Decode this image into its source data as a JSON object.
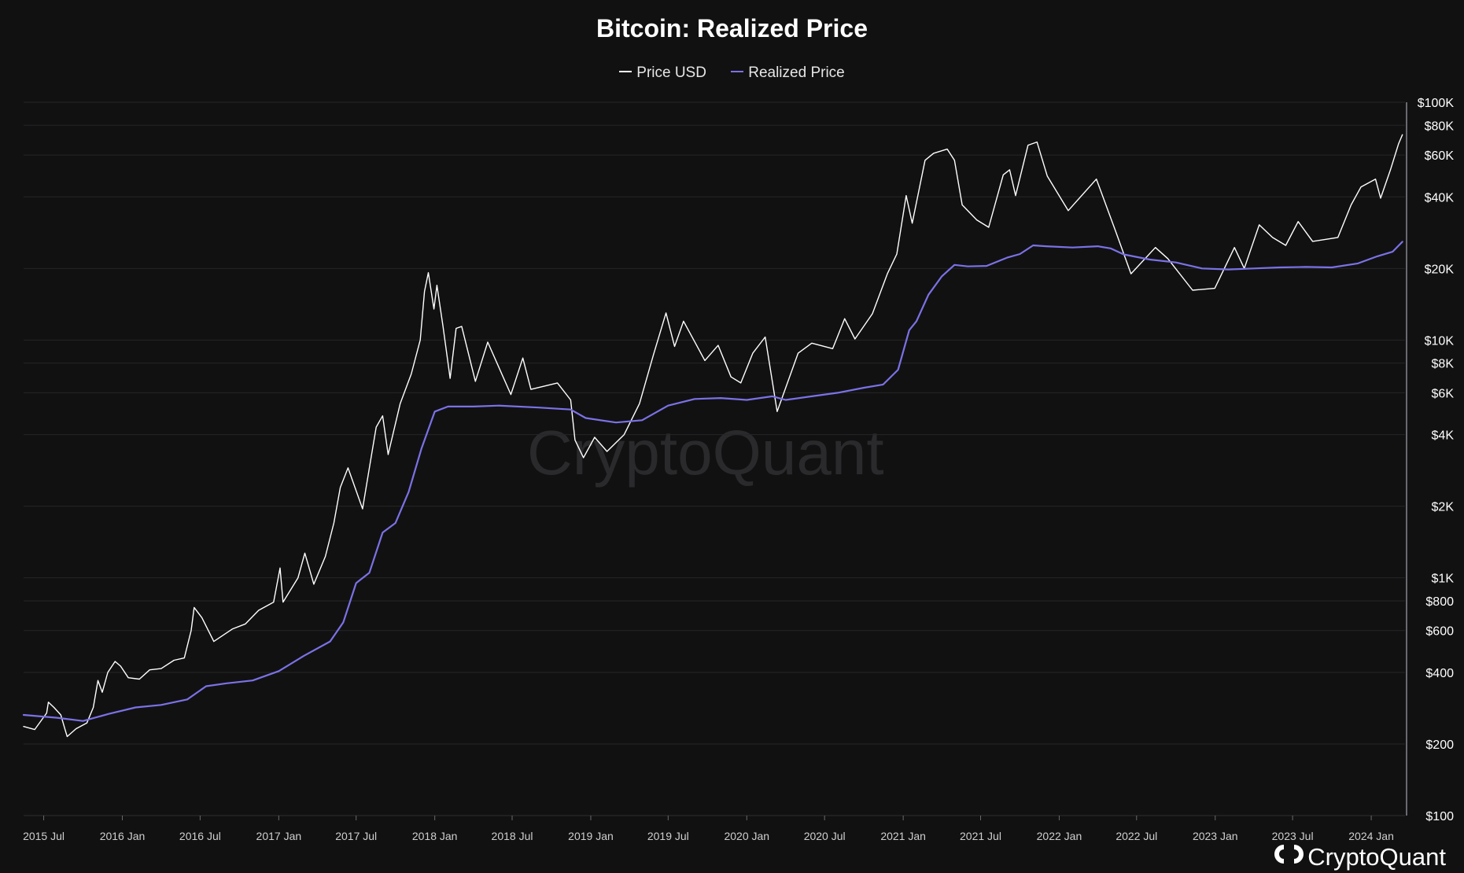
{
  "chart_data": {
    "type": "line",
    "title": "Bitcoin: Realized Price",
    "xlabel": "",
    "ylabel": "",
    "y_scale": "log",
    "ylim": [
      100,
      100000
    ],
    "xlim": [
      "2015-05-15",
      "2024-03-20"
    ],
    "grid": "horizontal",
    "legend_position": "top-center",
    "x_ticks": [
      "2015 Jul",
      "2016 Jan",
      "2016 Jul",
      "2017 Jan",
      "2017 Jul",
      "2018 Jan",
      "2018 Jul",
      "2019 Jan",
      "2019 Jul",
      "2020 Jan",
      "2020 Jul",
      "2021 Jan",
      "2021 Jul",
      "2022 Jan",
      "2022 Jul",
      "2023 Jan",
      "2023 Jul",
      "2024 Jan"
    ],
    "y_ticks": [
      "$100",
      "$200",
      "$400",
      "$600",
      "$800",
      "$1K",
      "$2K",
      "$4K",
      "$6K",
      "$8K",
      "$10K",
      "$20K",
      "$40K",
      "$60K",
      "$80K",
      "$100K"
    ],
    "y_tick_values": [
      100,
      200,
      400,
      600,
      800,
      1000,
      2000,
      4000,
      6000,
      8000,
      10000,
      20000,
      40000,
      60000,
      80000,
      100000
    ],
    "watermark": "CryptoQuant",
    "brand": "CryptoQuant",
    "series": [
      {
        "name": "Price USD",
        "color": "#ffffff",
        "points": [
          [
            "2015-05-15",
            237
          ],
          [
            "2015-06-10",
            230
          ],
          [
            "2015-07-08",
            270
          ],
          [
            "2015-07-12",
            300
          ],
          [
            "2015-07-25",
            285
          ],
          [
            "2015-08-10",
            265
          ],
          [
            "2015-08-20",
            230
          ],
          [
            "2015-08-25",
            215
          ],
          [
            "2015-09-15",
            232
          ],
          [
            "2015-10-10",
            245
          ],
          [
            "2015-10-25",
            285
          ],
          [
            "2015-11-05",
            370
          ],
          [
            "2015-11-15",
            330
          ],
          [
            "2015-11-28",
            400
          ],
          [
            "2015-12-15",
            445
          ],
          [
            "2015-12-28",
            425
          ],
          [
            "2016-01-15",
            380
          ],
          [
            "2016-02-10",
            375
          ],
          [
            "2016-03-05",
            410
          ],
          [
            "2016-04-01",
            415
          ],
          [
            "2016-05-01",
            450
          ],
          [
            "2016-05-25",
            460
          ],
          [
            "2016-06-10",
            600
          ],
          [
            "2016-06-17",
            750
          ],
          [
            "2016-07-05",
            680
          ],
          [
            "2016-08-02",
            540
          ],
          [
            "2016-09-15",
            610
          ],
          [
            "2016-10-15",
            640
          ],
          [
            "2016-11-15",
            730
          ],
          [
            "2016-12-20",
            790
          ],
          [
            "2017-01-04",
            1100
          ],
          [
            "2017-01-11",
            790
          ],
          [
            "2017-02-15",
            1000
          ],
          [
            "2017-03-03",
            1270
          ],
          [
            "2017-03-24",
            940
          ],
          [
            "2017-04-20",
            1230
          ],
          [
            "2017-05-10",
            1700
          ],
          [
            "2017-05-25",
            2400
          ],
          [
            "2017-06-12",
            2900
          ],
          [
            "2017-07-16",
            1950
          ],
          [
            "2017-08-05",
            3200
          ],
          [
            "2017-08-17",
            4300
          ],
          [
            "2017-09-01",
            4800
          ],
          [
            "2017-09-14",
            3300
          ],
          [
            "2017-10-12",
            5400
          ],
          [
            "2017-11-07",
            7200
          ],
          [
            "2017-11-28",
            10000
          ],
          [
            "2017-12-08",
            16000
          ],
          [
            "2017-12-17",
            19200
          ],
          [
            "2017-12-30",
            13500
          ],
          [
            "2018-01-06",
            17000
          ],
          [
            "2018-01-20",
            11500
          ],
          [
            "2018-02-06",
            6900
          ],
          [
            "2018-02-20",
            11200
          ],
          [
            "2018-03-05",
            11400
          ],
          [
            "2018-04-06",
            6700
          ],
          [
            "2018-05-05",
            9800
          ],
          [
            "2018-06-28",
            5900
          ],
          [
            "2018-07-26",
            8400
          ],
          [
            "2018-08-14",
            6200
          ],
          [
            "2018-10-15",
            6600
          ],
          [
            "2018-11-15",
            5600
          ],
          [
            "2018-11-25",
            3800
          ],
          [
            "2018-12-15",
            3200
          ],
          [
            "2019-01-10",
            3900
          ],
          [
            "2019-02-08",
            3400
          ],
          [
            "2019-03-20",
            4000
          ],
          [
            "2019-04-25",
            5400
          ],
          [
            "2019-05-28",
            8700
          ],
          [
            "2019-06-26",
            13000
          ],
          [
            "2019-07-16",
            9400
          ],
          [
            "2019-08-06",
            12000
          ],
          [
            "2019-09-25",
            8200
          ],
          [
            "2019-10-26",
            9500
          ],
          [
            "2019-11-25",
            7000
          ],
          [
            "2019-12-18",
            6600
          ],
          [
            "2020-01-15",
            8800
          ],
          [
            "2020-02-13",
            10300
          ],
          [
            "2020-03-12",
            5000
          ],
          [
            "2020-04-30",
            8800
          ],
          [
            "2020-06-01",
            9700
          ],
          [
            "2020-07-20",
            9200
          ],
          [
            "2020-08-17",
            12300
          ],
          [
            "2020-09-10",
            10100
          ],
          [
            "2020-10-21",
            12900
          ],
          [
            "2020-11-25",
            19000
          ],
          [
            "2020-12-17",
            23000
          ],
          [
            "2021-01-08",
            40500
          ],
          [
            "2021-01-22",
            31000
          ],
          [
            "2021-02-21",
            57000
          ],
          [
            "2021-03-13",
            61000
          ],
          [
            "2021-04-14",
            63500
          ],
          [
            "2021-05-01",
            57000
          ],
          [
            "2021-05-19",
            37000
          ],
          [
            "2021-06-22",
            32000
          ],
          [
            "2021-07-20",
            29800
          ],
          [
            "2021-08-23",
            49500
          ],
          [
            "2021-09-07",
            52000
          ],
          [
            "2021-09-21",
            40500
          ],
          [
            "2021-10-20",
            66000
          ],
          [
            "2021-11-10",
            68000
          ],
          [
            "2021-12-04",
            49000
          ],
          [
            "2022-01-22",
            35000
          ],
          [
            "2022-03-29",
            47500
          ],
          [
            "2022-05-12",
            29000
          ],
          [
            "2022-06-18",
            19000
          ],
          [
            "2022-08-14",
            24500
          ],
          [
            "2022-09-12",
            22000
          ],
          [
            "2022-11-09",
            16200
          ],
          [
            "2022-12-31",
            16500
          ],
          [
            "2023-02-15",
            24500
          ],
          [
            "2023-03-10",
            20000
          ],
          [
            "2023-04-14",
            30500
          ],
          [
            "2023-05-15",
            27000
          ],
          [
            "2023-06-15",
            25000
          ],
          [
            "2023-07-14",
            31500
          ],
          [
            "2023-08-17",
            26000
          ],
          [
            "2023-10-15",
            27000
          ],
          [
            "2023-11-15",
            37000
          ],
          [
            "2023-12-08",
            44000
          ],
          [
            "2024-01-11",
            47500
          ],
          [
            "2024-01-23",
            39500
          ],
          [
            "2024-02-15",
            52000
          ],
          [
            "2024-03-05",
            67000
          ],
          [
            "2024-03-14",
            73000
          ]
        ]
      },
      {
        "name": "Realized Price",
        "color": "#7b72e6",
        "points": [
          [
            "2015-05-15",
            265
          ],
          [
            "2015-08-01",
            258
          ],
          [
            "2015-10-01",
            250
          ],
          [
            "2015-12-01",
            268
          ],
          [
            "2016-02-01",
            285
          ],
          [
            "2016-04-01",
            292
          ],
          [
            "2016-06-01",
            308
          ],
          [
            "2016-07-15",
            350
          ],
          [
            "2016-09-01",
            360
          ],
          [
            "2016-11-01",
            370
          ],
          [
            "2017-01-01",
            405
          ],
          [
            "2017-03-01",
            470
          ],
          [
            "2017-05-01",
            540
          ],
          [
            "2017-06-01",
            650
          ],
          [
            "2017-07-01",
            950
          ],
          [
            "2017-08-01",
            1050
          ],
          [
            "2017-09-01",
            1550
          ],
          [
            "2017-10-01",
            1700
          ],
          [
            "2017-11-01",
            2300
          ],
          [
            "2017-12-01",
            3500
          ],
          [
            "2018-01-01",
            5000
          ],
          [
            "2018-02-01",
            5250
          ],
          [
            "2018-04-01",
            5250
          ],
          [
            "2018-06-01",
            5300
          ],
          [
            "2018-09-01",
            5200
          ],
          [
            "2018-11-15",
            5100
          ],
          [
            "2018-12-20",
            4700
          ],
          [
            "2019-03-01",
            4500
          ],
          [
            "2019-05-01",
            4600
          ],
          [
            "2019-07-01",
            5300
          ],
          [
            "2019-09-01",
            5650
          ],
          [
            "2019-11-01",
            5700
          ],
          [
            "2020-01-01",
            5600
          ],
          [
            "2020-03-01",
            5800
          ],
          [
            "2020-04-01",
            5600
          ],
          [
            "2020-06-01",
            5800
          ],
          [
            "2020-08-01",
            6000
          ],
          [
            "2020-10-01",
            6300
          ],
          [
            "2020-11-15",
            6500
          ],
          [
            "2020-12-20",
            7500
          ],
          [
            "2021-01-15",
            11000
          ],
          [
            "2021-02-01",
            12000
          ],
          [
            "2021-03-01",
            15500
          ],
          [
            "2021-04-01",
            18500
          ],
          [
            "2021-05-01",
            20700
          ],
          [
            "2021-06-01",
            20400
          ],
          [
            "2021-07-15",
            20500
          ],
          [
            "2021-09-01",
            22200
          ],
          [
            "2021-10-01",
            23000
          ],
          [
            "2021-11-01",
            25000
          ],
          [
            "2021-12-01",
            24800
          ],
          [
            "2022-02-01",
            24500
          ],
          [
            "2022-04-01",
            24800
          ],
          [
            "2022-05-01",
            24300
          ],
          [
            "2022-06-01",
            22900
          ],
          [
            "2022-08-01",
            21800
          ],
          [
            "2022-10-01",
            21200
          ],
          [
            "2022-12-01",
            20000
          ],
          [
            "2023-02-01",
            19800
          ],
          [
            "2023-04-01",
            20000
          ],
          [
            "2023-06-01",
            20200
          ],
          [
            "2023-08-01",
            20300
          ],
          [
            "2023-10-01",
            20200
          ],
          [
            "2023-12-01",
            21000
          ],
          [
            "2024-01-15",
            22500
          ],
          [
            "2024-02-20",
            23500
          ],
          [
            "2024-03-14",
            25900
          ]
        ]
      }
    ]
  }
}
